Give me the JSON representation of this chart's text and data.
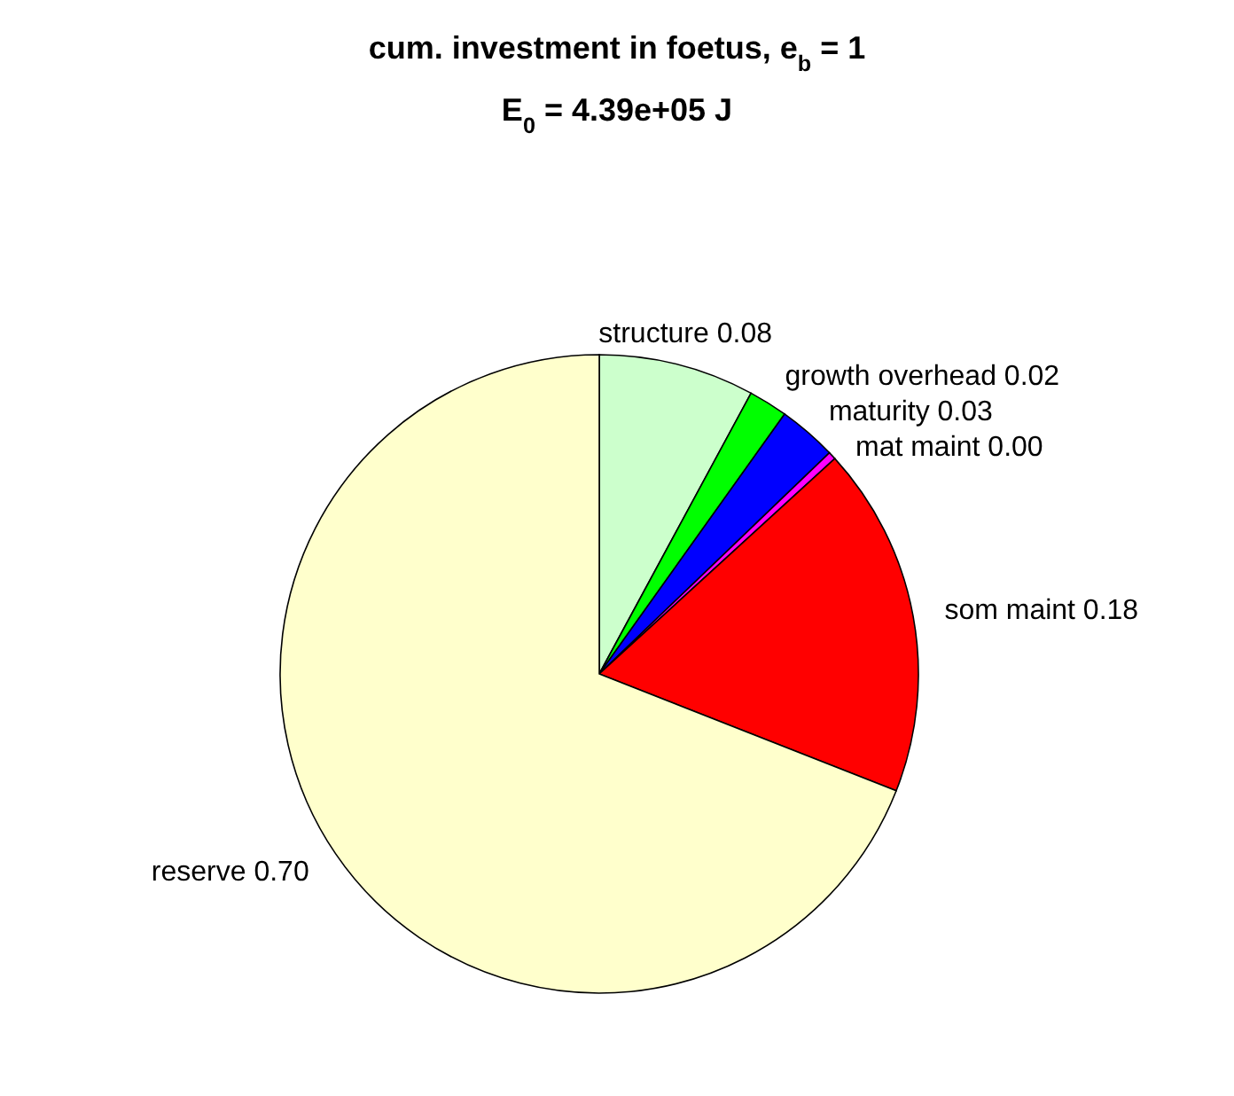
{
  "chart_data": {
    "type": "pie",
    "title": "cum. investment in foetus, e$_{b}$ = 1",
    "subtitle": "E$_{0}$ = 4.39e+05 J",
    "categories": [
      "structure",
      "growth overhead",
      "maturity",
      "mat maint",
      "som maint",
      "reserve"
    ],
    "values": [
      0.08,
      0.02,
      0.03,
      0.004,
      0.18,
      0.7
    ],
    "value_labels": [
      "0.08",
      "0.02",
      "0.03",
      "0.00",
      "0.18",
      "0.70"
    ],
    "colors": [
      "#ccffcc",
      "#00ff00",
      "#0000ff",
      "#ff00ff",
      "#ff0000",
      "#ffffcc"
    ]
  }
}
